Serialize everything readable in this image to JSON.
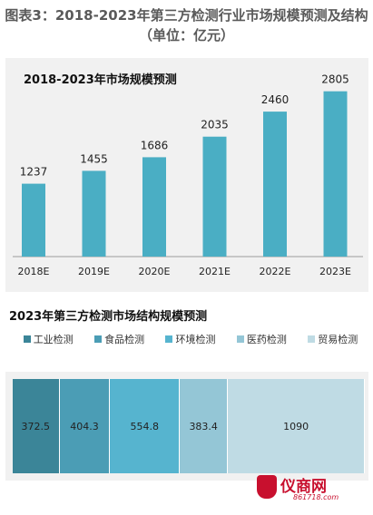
{
  "figure": {
    "title": "图表3：2018-2023年第三方检测行业市场规模预测及结构（单位：亿元）"
  },
  "chart_data": [
    {
      "type": "bar",
      "title": "2018-2023年市场规模预测",
      "categories": [
        "2018E",
        "2019E",
        "2020E",
        "2021E",
        "2022E",
        "2023E"
      ],
      "values": [
        1237,
        1455,
        1686,
        2035,
        2460,
        2805
      ],
      "xlabel": "",
      "ylabel": "",
      "ylim": [
        0,
        3000
      ],
      "grid": false,
      "color": "#4aaec4"
    },
    {
      "type": "bar",
      "title": "2023年第三方检测市场结构规模预测",
      "categories": [
        "工业检测",
        "食品检测",
        "环境检测",
        "医药检测",
        "贸易检测"
      ],
      "values": [
        372.5,
        404.3,
        554.8,
        383.4,
        1090
      ],
      "stacked": true,
      "orientation": "horizontal",
      "legend": "top",
      "colors": [
        "#3b8598",
        "#4b9db5",
        "#56b4cf",
        "#94c6d6",
        "#bfdbe4"
      ]
    }
  ],
  "logo": {
    "name": "仪商网",
    "url": "861718.com"
  }
}
